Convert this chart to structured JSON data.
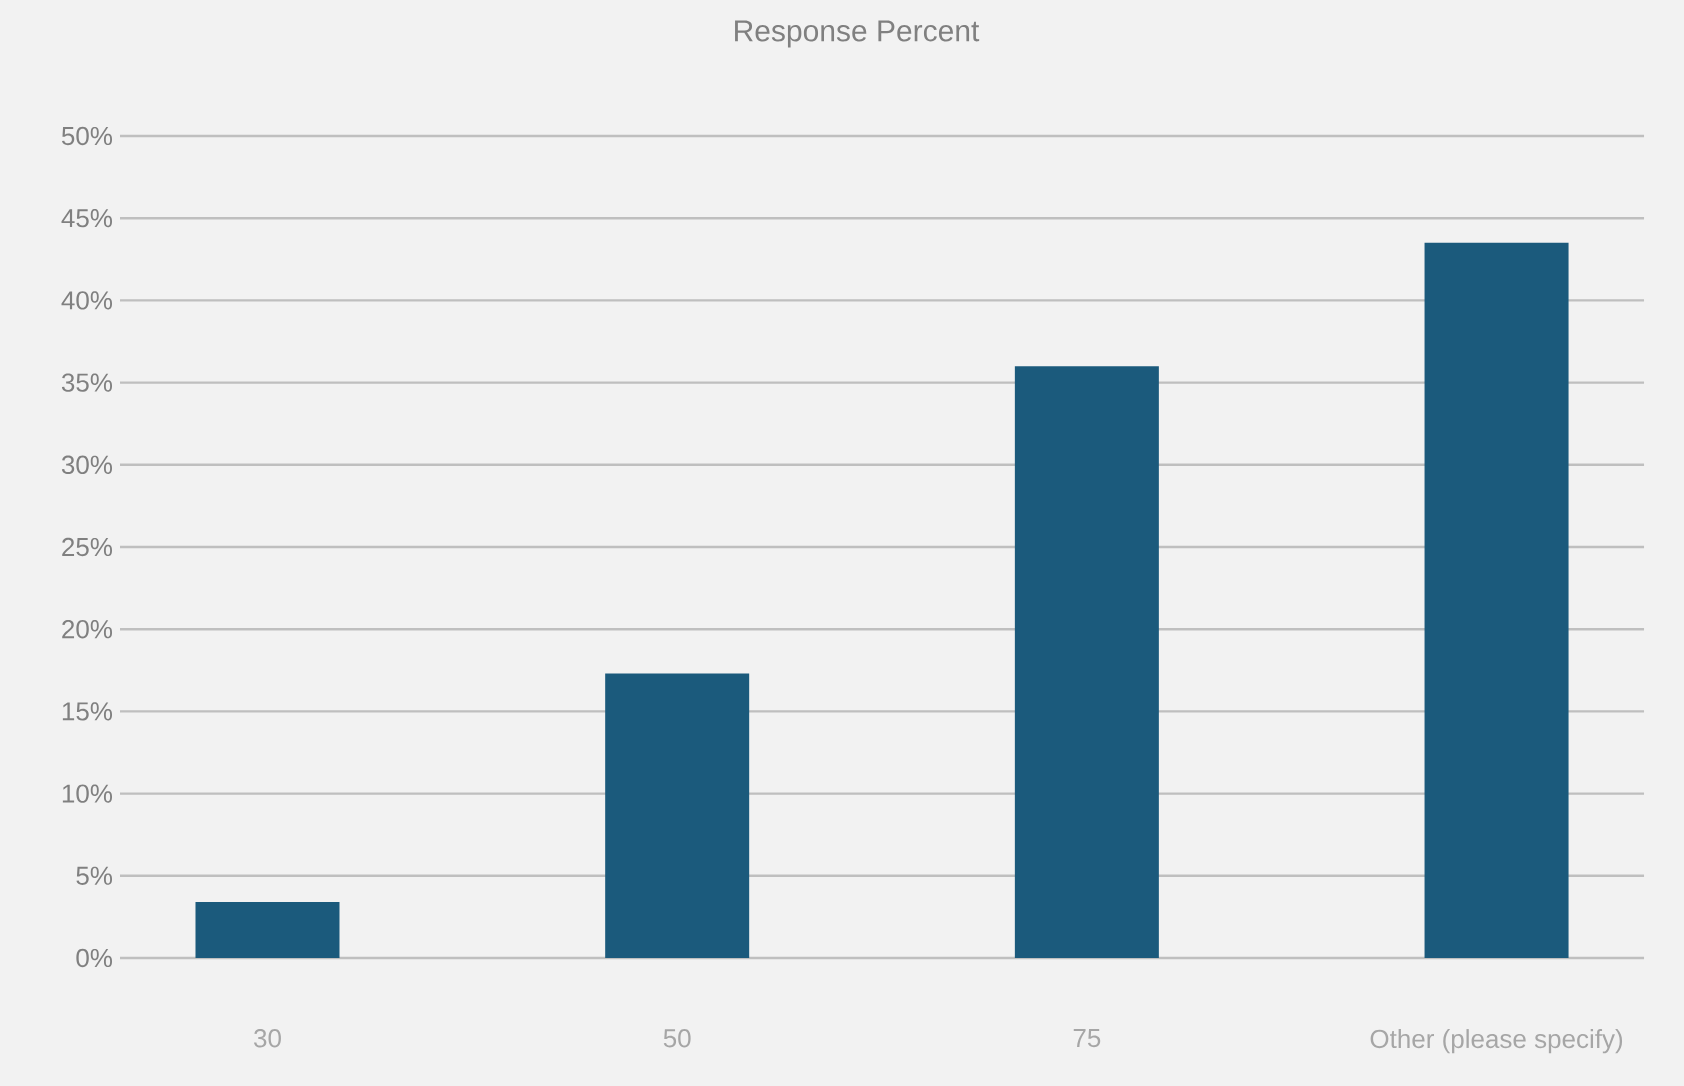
{
  "chart_data": {
    "type": "bar",
    "title": "Response Percent",
    "categories": [
      "30",
      "50",
      "75",
      "Other (please specify)"
    ],
    "values": [
      3.4,
      17.3,
      36.0,
      43.5
    ],
    "color": "#1b5a7c",
    "ylim": [
      0,
      50
    ],
    "yticks": [
      {
        "value": 0,
        "label": "0%"
      },
      {
        "value": 5,
        "label": "5%"
      },
      {
        "value": 10,
        "label": "10%"
      },
      {
        "value": 15,
        "label": "15%"
      },
      {
        "value": 20,
        "label": "20%"
      },
      {
        "value": 25,
        "label": "25%"
      },
      {
        "value": 30,
        "label": "30%"
      },
      {
        "value": 35,
        "label": "35%"
      },
      {
        "value": 40,
        "label": "40%"
      },
      {
        "value": 45,
        "label": "45%"
      },
      {
        "value": 50,
        "label": "50%"
      }
    ],
    "grid": "y"
  }
}
